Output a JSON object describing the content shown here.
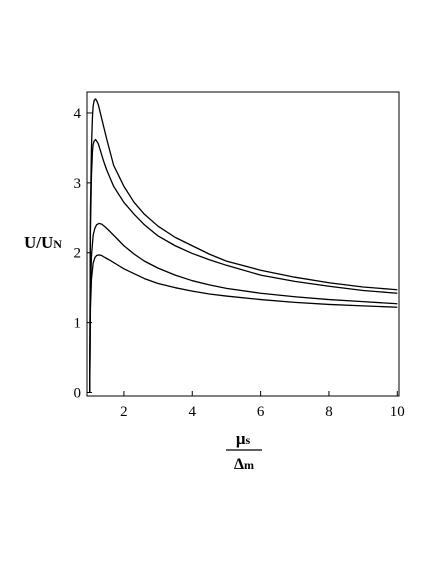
{
  "chart_data": {
    "type": "line",
    "ylabel": "U/U",
    "ylabel_sub": "N",
    "xlabel_num": "μ",
    "xlabel_num_sub": "s",
    "xlabel_den": "Δ",
    "xlabel_den_sub": "m",
    "xlim": [
      0.92,
      10.05
    ],
    "ylim": [
      -0.05,
      4.3
    ],
    "x_ticks": [
      2,
      4,
      6,
      8,
      10
    ],
    "y_ticks": [
      0,
      1,
      2,
      3,
      4
    ],
    "grid": false,
    "legend": "none",
    "series": [
      {
        "x": [
          1.0,
          1.02,
          1.05,
          1.08,
          1.1,
          1.13,
          1.17,
          1.2,
          1.25,
          1.3,
          1.4,
          1.5,
          1.7,
          2.0,
          2.3,
          2.6,
          3.0,
          3.5,
          4.0,
          4.5,
          5.0,
          6.0,
          7.0,
          8.0,
          9.0,
          10.0
        ],
        "y": [
          0.0,
          2.6,
          3.5,
          3.95,
          4.1,
          4.18,
          4.2,
          4.18,
          4.12,
          4.02,
          3.82,
          3.62,
          3.25,
          2.95,
          2.72,
          2.55,
          2.38,
          2.22,
          2.1,
          1.98,
          1.88,
          1.75,
          1.65,
          1.57,
          1.51,
          1.47
        ]
      },
      {
        "x": [
          1.0,
          1.02,
          1.05,
          1.08,
          1.1,
          1.13,
          1.17,
          1.2,
          1.25,
          1.3,
          1.4,
          1.5,
          1.7,
          2.0,
          2.3,
          2.6,
          3.0,
          3.5,
          4.0,
          4.5,
          5.0,
          6.0,
          7.0,
          8.0,
          9.0,
          10.0
        ],
        "y": [
          0.0,
          2.3,
          3.1,
          3.45,
          3.55,
          3.6,
          3.62,
          3.6,
          3.56,
          3.48,
          3.32,
          3.18,
          2.95,
          2.72,
          2.55,
          2.4,
          2.24,
          2.1,
          1.99,
          1.9,
          1.82,
          1.68,
          1.59,
          1.52,
          1.46,
          1.42
        ]
      },
      {
        "x": [
          1.0,
          1.02,
          1.05,
          1.1,
          1.15,
          1.2,
          1.27,
          1.35,
          1.45,
          1.6,
          1.8,
          2.0,
          2.3,
          2.6,
          3.0,
          3.5,
          4.0,
          4.5,
          5.0,
          6.0,
          7.0,
          8.0,
          9.0,
          10.0
        ],
        "y": [
          0.0,
          1.45,
          1.95,
          2.25,
          2.35,
          2.4,
          2.42,
          2.41,
          2.37,
          2.3,
          2.2,
          2.1,
          1.98,
          1.88,
          1.78,
          1.68,
          1.6,
          1.54,
          1.49,
          1.42,
          1.37,
          1.33,
          1.3,
          1.27
        ]
      },
      {
        "x": [
          1.0,
          1.02,
          1.05,
          1.1,
          1.15,
          1.2,
          1.27,
          1.35,
          1.45,
          1.6,
          1.8,
          2.0,
          2.3,
          2.6,
          3.0,
          3.5,
          4.0,
          4.5,
          5.0,
          6.0,
          7.0,
          8.0,
          9.0,
          10.0
        ],
        "y": [
          0.0,
          1.2,
          1.62,
          1.85,
          1.93,
          1.96,
          1.97,
          1.96,
          1.93,
          1.89,
          1.83,
          1.77,
          1.7,
          1.63,
          1.56,
          1.5,
          1.45,
          1.41,
          1.38,
          1.33,
          1.29,
          1.26,
          1.24,
          1.22
        ]
      }
    ]
  }
}
